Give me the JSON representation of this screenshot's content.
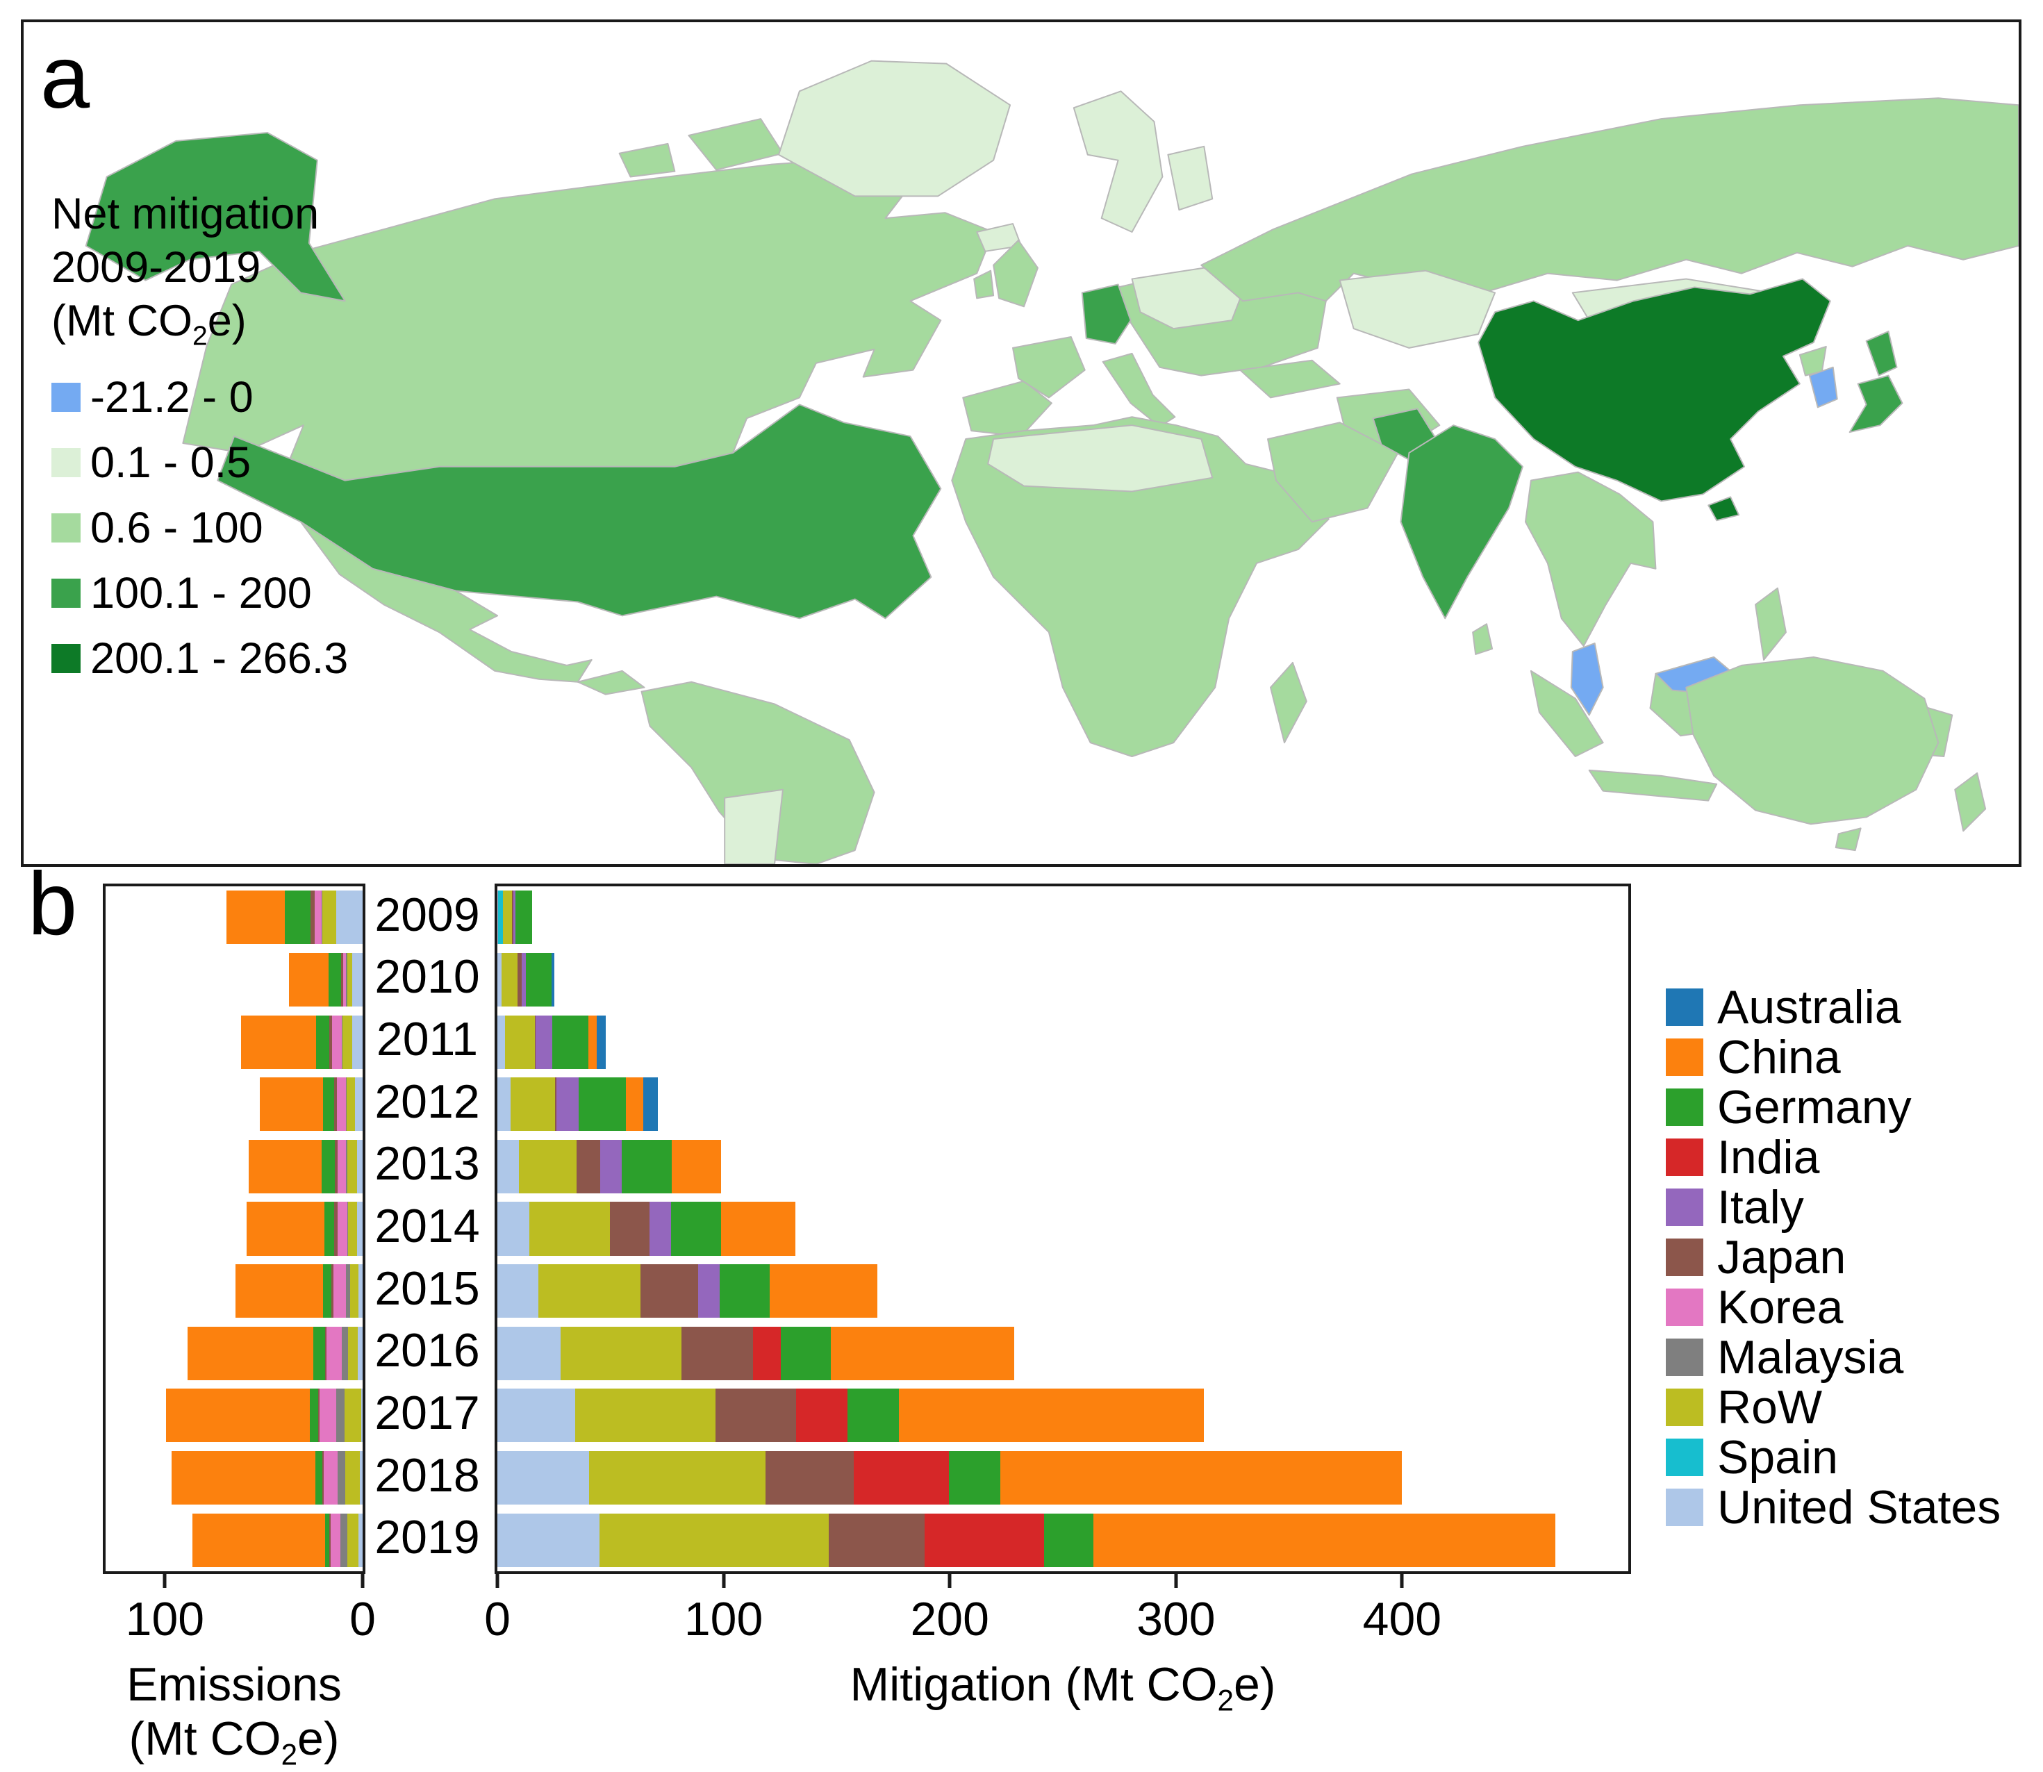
{
  "panel_a": {
    "label": "a",
    "legend": {
      "title_line1": "Net mitigation",
      "title_line2": "2009-2019",
      "title_line3_pre": "(Mt CO",
      "title_line3_sub": "2",
      "title_line3_post": "e)",
      "classes": [
        {
          "label": "-21.2 - 0",
          "color": "#74AAF2"
        },
        {
          "label": "0.1 - 0.5",
          "color": "#DCF0D7"
        },
        {
          "label": "0.6 - 100",
          "color": "#A5DA9E"
        },
        {
          "label": "100.1 - 200",
          "color": "#3AA24C"
        },
        {
          "label": "200.1 - 266.3",
          "color": "#0D7A27"
        }
      ]
    },
    "regions": {
      "alaska": 3,
      "canada": 2,
      "arctic-islands": 2,
      "greenland": 1,
      "iceland": 1,
      "united-states": 3,
      "mexico": 2,
      "central-america": 2,
      "south-america": 2,
      "argentina": 1,
      "uk": 2,
      "ireland": 2,
      "scandinavia": 1,
      "iberia": 2,
      "france": 2,
      "germany": 3,
      "italy": 2,
      "east-europe": 1,
      "central-europe": 2,
      "africa": 2,
      "north-africa": 1,
      "madagascar": 2,
      "russia": 2,
      "kazakhstan": 1,
      "mongolia": 1,
      "turkey": 2,
      "iran": 2,
      "saudi": 2,
      "china": 4,
      "india": 3,
      "pakistan": 3,
      "sri-lanka": 2,
      "se-asia": 2,
      "malay-peninsula": 0,
      "borneo": 2,
      "borneo-malaysia": 0,
      "sumatra": 2,
      "java": 2,
      "sulawesi": 2,
      "new-guinea": 2,
      "philippines": 2,
      "north-korea": 2,
      "south-korea": 0,
      "japan": 3,
      "australia": 2,
      "tasmania": 2,
      "new-zealand": 2
    }
  },
  "panel_b": {
    "label": "b",
    "years": [
      "2009",
      "2010",
      "2011",
      "2012",
      "2013",
      "2014",
      "2015",
      "2016",
      "2017",
      "2018",
      "2019"
    ],
    "series_colors": {
      "Australia": "#1F77B4",
      "China": "#FC810E",
      "Germany": "#2CA02C",
      "India": "#D62728",
      "Italy": "#9467BD",
      "Japan": "#8C564B",
      "Korea": "#E377C2",
      "Malaysia": "#7F7F7F",
      "RoW": "#BCBD22",
      "Spain": "#17BECF",
      "United States": "#AEC7E8"
    },
    "legend_order": [
      "Australia",
      "China",
      "Germany",
      "India",
      "Italy",
      "Japan",
      "Korea",
      "Malaysia",
      "RoW",
      "Spain",
      "United States"
    ],
    "stack_order": [
      "United States",
      "Spain",
      "RoW",
      "Malaysia",
      "Korea",
      "Japan",
      "Italy",
      "India",
      "Germany",
      "China",
      "Australia"
    ],
    "emissions": {
      "xlabel_pre": "Emissions (Mt CO",
      "xlabel_sub": "2",
      "xlabel_post": "e)",
      "xmax": 130,
      "ticks": [
        {
          "label": "100",
          "value": 100
        },
        {
          "label": "0",
          "value": 0
        }
      ]
    },
    "mitigation": {
      "xlabel_pre": "Mitigation (Mt CO",
      "xlabel_sub": "2",
      "xlabel_post": "e)",
      "xmax": 500,
      "ticks": [
        {
          "label": "0",
          "value": 0
        },
        {
          "label": "100",
          "value": 100
        },
        {
          "label": "200",
          "value": 200
        },
        {
          "label": "300",
          "value": 300
        },
        {
          "label": "400",
          "value": 400
        }
      ]
    }
  },
  "chart_data": [
    {
      "type": "bar",
      "name": "emissions",
      "orientation": "horizontal-stacked",
      "axis_reversed": true,
      "title": "",
      "xlabel": "Emissions (Mt CO2e)",
      "categories": [
        "2009",
        "2010",
        "2011",
        "2012",
        "2013",
        "2014",
        "2015",
        "2016",
        "2017",
        "2018",
        "2019"
      ],
      "xlim": [
        0,
        130
      ],
      "series": [
        {
          "name": "United States",
          "values": [
            13.5,
            5.2,
            5.3,
            3.7,
            2.9,
            2.9,
            2.1,
            2.6,
            0.7,
            1.4,
            2.1
          ]
        },
        {
          "name": "Spain",
          "values": [
            0,
            0,
            0,
            0,
            0,
            0,
            0,
            0,
            0,
            0,
            0
          ]
        },
        {
          "name": "RoW",
          "values": [
            6.8,
            2.7,
            5.0,
            4.4,
            5.0,
            4.4,
            4.1,
            4.7,
            8.5,
            7.4,
            5.6
          ]
        },
        {
          "name": "Malaysia",
          "values": [
            0.5,
            0.4,
            0.4,
            0.4,
            0.5,
            0.5,
            2.3,
            3.3,
            4.3,
            3.9,
            3.7
          ]
        },
        {
          "name": "Korea",
          "values": [
            3.4,
            1.4,
            4.7,
            4.4,
            4.3,
            4.9,
            6.4,
            7.6,
            8.2,
            7.0,
            4.9
          ]
        },
        {
          "name": "Japan",
          "values": [
            2.3,
            1.2,
            1.4,
            1.4,
            1.5,
            1.8,
            0.8,
            0.7,
            0.7,
            0.6,
            0.5
          ]
        },
        {
          "name": "Italy",
          "values": [
            0,
            0,
            0,
            0,
            0,
            0,
            0,
            0,
            0,
            0,
            0
          ]
        },
        {
          "name": "India",
          "values": [
            0,
            0,
            0,
            0,
            0,
            0,
            0,
            0,
            0,
            0,
            0
          ]
        },
        {
          "name": "Germany",
          "values": [
            12.8,
            6.5,
            6.8,
            5.6,
            6.7,
            4.7,
            4.4,
            6.1,
            4.3,
            3.7,
            2.3
          ]
        },
        {
          "name": "China",
          "values": [
            29.7,
            19.8,
            37.9,
            32.0,
            36.9,
            39.4,
            44.4,
            63.5,
            72.6,
            72.5,
            67.1
          ]
        },
        {
          "name": "Australia",
          "values": [
            0,
            0,
            0,
            0,
            0,
            0,
            0,
            0,
            0,
            0,
            0
          ]
        }
      ]
    },
    {
      "type": "bar",
      "name": "mitigation",
      "orientation": "horizontal-stacked",
      "axis_reversed": false,
      "title": "",
      "xlabel": "Mitigation (Mt CO2e)",
      "categories": [
        "2009",
        "2010",
        "2011",
        "2012",
        "2013",
        "2014",
        "2015",
        "2016",
        "2017",
        "2018",
        "2019"
      ],
      "xlim": [
        0,
        500
      ],
      "series": [
        {
          "name": "United States",
          "values": [
            0.3,
            1.8,
            3.4,
            5.9,
            9.4,
            14.0,
            18.1,
            28.1,
            34.5,
            40.6,
            45.2
          ]
        },
        {
          "name": "Spain",
          "values": [
            2.3,
            0,
            0,
            0,
            0,
            0,
            0,
            0,
            0,
            0,
            0
          ]
        },
        {
          "name": "RoW",
          "values": [
            3.7,
            7.1,
            13.2,
            19.6,
            25.7,
            35.7,
            45.1,
            53.2,
            62.0,
            78.0,
            101.4
          ]
        },
        {
          "name": "Malaysia",
          "values": [
            0,
            0,
            0,
            0,
            0,
            0,
            0,
            0,
            0,
            0,
            0
          ]
        },
        {
          "name": "Korea",
          "values": [
            0,
            0,
            0,
            0,
            0,
            0,
            0,
            0,
            0,
            0,
            0
          ]
        },
        {
          "name": "Japan",
          "values": [
            0.8,
            1.7,
            0.3,
            0.5,
            10.5,
            17.6,
            25.7,
            31.6,
            35.7,
            39.0,
            42.2
          ]
        },
        {
          "name": "Italy",
          "values": [
            0.9,
            2.0,
            7.3,
            10.0,
            9.4,
            9.4,
            9.4,
            0,
            0,
            0,
            0
          ]
        },
        {
          "name": "India",
          "values": [
            0,
            0,
            0,
            0,
            0,
            0,
            0,
            12.3,
            22.6,
            42.1,
            52.8
          ]
        },
        {
          "name": "Germany",
          "values": [
            7.3,
            11.5,
            16.1,
            20.9,
            22.2,
            22.2,
            22.2,
            22.2,
            22.6,
            22.6,
            22.0
          ]
        },
        {
          "name": "China",
          "values": [
            0,
            0,
            3.6,
            7.6,
            21.6,
            32.8,
            47.4,
            81.0,
            134.9,
            177.7,
            204.2
          ]
        },
        {
          "name": "Australia",
          "values": [
            0,
            1.2,
            4.1,
            6.6,
            0,
            0,
            0,
            0,
            0,
            0,
            0
          ]
        }
      ]
    }
  ]
}
